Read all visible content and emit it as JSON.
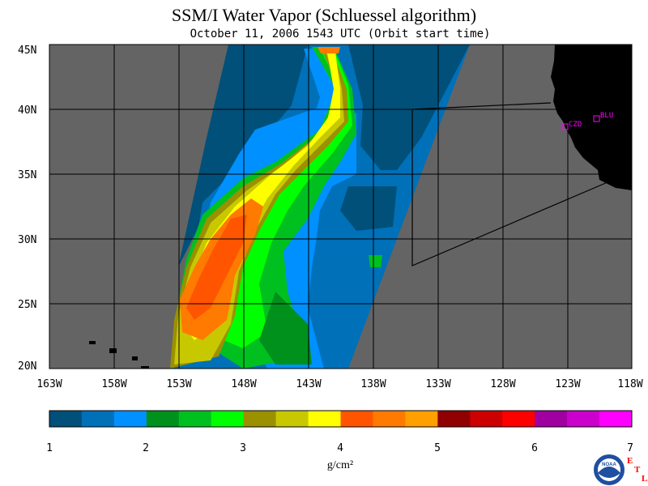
{
  "title": "SSM/I Water Vapor (Schluessel algorithm)",
  "subtitle": "October 11, 2006  1543 UTC  (Orbit start time)",
  "map": {
    "lat_labels": [
      "45N",
      "40N",
      "35N",
      "30N",
      "25N",
      "20N"
    ],
    "lon_labels": [
      "163W",
      "158W",
      "153W",
      "148W",
      "143W",
      "138W",
      "133W",
      "128W",
      "123W",
      "118W"
    ],
    "lat_range": [
      20,
      45
    ],
    "lon_range": [
      -163,
      -118
    ],
    "background_color": "#646464",
    "land_color": "#000000",
    "stations": [
      {
        "name": "CZD",
        "lat": 38.6,
        "lon": -123.2
      },
      {
        "name": "BLU",
        "lat": 39.3,
        "lon": -120.9
      }
    ]
  },
  "colorbar": {
    "colors": [
      "#00507a",
      "#0070b8",
      "#0090ff",
      "#00901c",
      "#00c020",
      "#00ff00",
      "#9a9000",
      "#c8c800",
      "#ffff00",
      "#ff5500",
      "#ff7a00",
      "#ffa000",
      "#900000",
      "#cc0000",
      "#ff0000",
      "#a000a0",
      "#cc00cc",
      "#ff00ff"
    ],
    "tick_labels": [
      "1",
      "2",
      "3",
      "4",
      "5",
      "6",
      "7"
    ],
    "unit": "g/cm²"
  },
  "logo": {
    "text": "NOAA",
    "letters": [
      "E",
      "T",
      "L"
    ]
  }
}
